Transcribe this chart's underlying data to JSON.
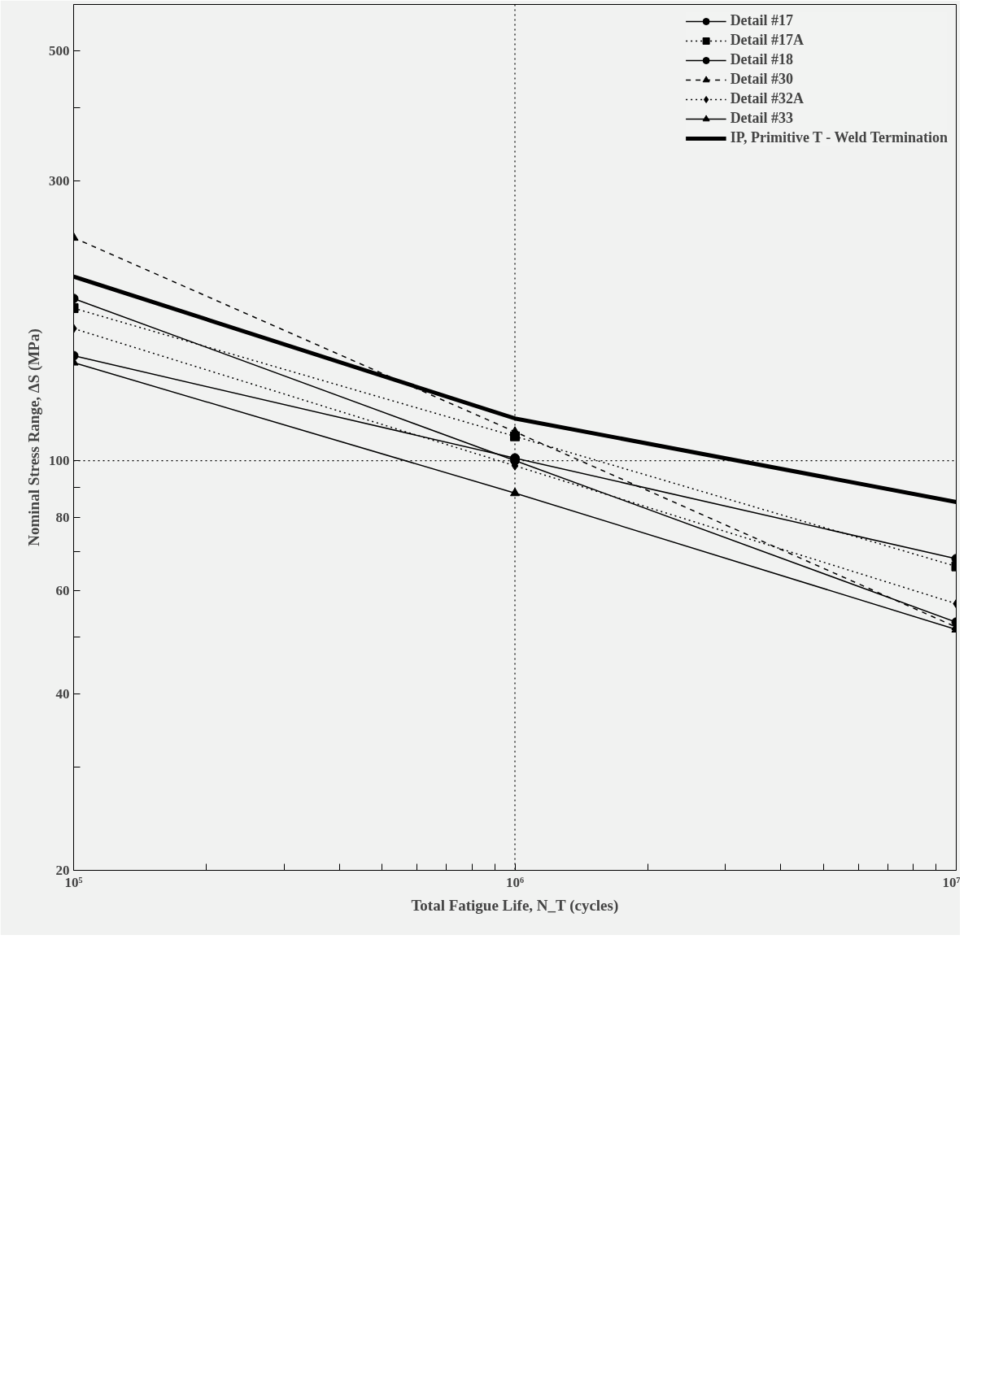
{
  "chart_data": {
    "type": "line",
    "xlabel": "Total Fatigue Life, N_T (cycles)",
    "ylabel": "Nominal Stress Range, ΔS (MPa)",
    "x": [
      100000,
      1000000,
      10000000
    ],
    "log": "xy",
    "xlim": [
      100000,
      10000000
    ],
    "ylim": [
      20,
      600
    ],
    "xticks": [
      {
        "value": 100000,
        "label": "10⁵"
      },
      {
        "value": 200000,
        "label": null
      },
      {
        "value": 300000,
        "label": null
      },
      {
        "value": 400000,
        "label": null
      },
      {
        "value": 500000,
        "label": null
      },
      {
        "value": 600000,
        "label": null
      },
      {
        "value": 700000,
        "label": null
      },
      {
        "value": 800000,
        "label": null
      },
      {
        "value": 900000,
        "label": null
      },
      {
        "value": 1000000,
        "label": "10⁶"
      },
      {
        "value": 2000000,
        "label": null
      },
      {
        "value": 3000000,
        "label": null
      },
      {
        "value": 4000000,
        "label": null
      },
      {
        "value": 5000000,
        "label": null
      },
      {
        "value": 6000000,
        "label": null
      },
      {
        "value": 7000000,
        "label": null
      },
      {
        "value": 8000000,
        "label": null
      },
      {
        "value": 9000000,
        "label": null
      },
      {
        "value": 10000000,
        "label": "10⁷"
      }
    ],
    "yticks": [
      20,
      {
        "value": 30,
        "label": null
      },
      40,
      {
        "value": 50,
        "label": null
      },
      60,
      {
        "value": 70,
        "label": null
      },
      80,
      {
        "value": 90,
        "label": null
      },
      100,
      300,
      {
        "value": 400,
        "label": null
      },
      500
    ],
    "grid": false,
    "legend": "top right",
    "ref_lines": [
      {
        "axis": "y",
        "value": 100,
        "line_style": "dotted"
      },
      {
        "axis": "x",
        "value": 1000000,
        "line_style": "dotted"
      }
    ],
    "series": [
      {
        "name": "Detail #17",
        "color": "#000000",
        "marker": "circle",
        "line_style": "solid",
        "values": [
          189,
          100,
          53
        ]
      },
      {
        "name": "Detail #17A",
        "color": "#000000",
        "marker": "square",
        "line_style": "dotted",
        "values": [
          182,
          110,
          66
        ]
      },
      {
        "name": "Detail #18",
        "color": "#000000",
        "marker": "circle",
        "line_style": "solid",
        "values": [
          151,
          101,
          68
        ]
      },
      {
        "name": "Detail #30",
        "color": "#000000",
        "marker": "triangle",
        "line_style": "dashed",
        "values": [
          240,
          112,
          52
        ]
      },
      {
        "name": "Detail #32A",
        "color": "#000000",
        "marker": "diamond",
        "line_style": "dotted",
        "values": [
          168,
          98,
          57
        ]
      },
      {
        "name": "Detail #33",
        "color": "#000000",
        "marker": "triangle",
        "line_style": "solid",
        "values": [
          147,
          88,
          51.5
        ]
      },
      {
        "name": "IP, Primitive T - Weld Termination",
        "color": "#000000",
        "marker": "none",
        "line_style": "solid",
        "values": [
          206,
          118,
          85
        ]
      }
    ]
  }
}
